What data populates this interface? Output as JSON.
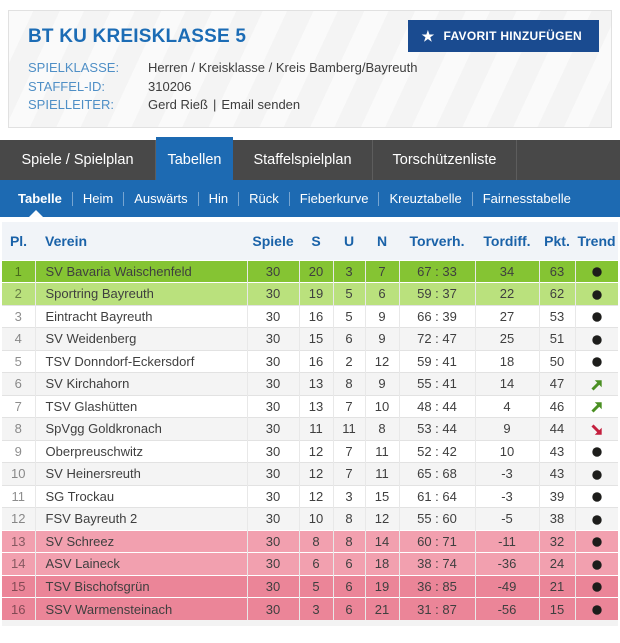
{
  "header": {
    "title": "BT KU KREISKLASSE 5",
    "favorite_button_label": "FAVORIT HINZUFÜGEN",
    "fields": [
      {
        "label": "SPIELKLASSE:",
        "value": "Herren / Kreisklasse / Kreis Bamberg/Bayreuth"
      },
      {
        "label": "STAFFEL-ID:",
        "value": "310206"
      }
    ],
    "spielleiter": {
      "label": "SPIELLEITER:",
      "name": "Gerd Rieß",
      "separator": "|",
      "email_link": "Email senden"
    }
  },
  "tabs": [
    {
      "label": "Spiele / Spielplan",
      "active": false
    },
    {
      "label": "Tabellen",
      "active": true
    },
    {
      "label": "Staffelspielplan",
      "active": false
    },
    {
      "label": "Torschützenliste",
      "active": false
    }
  ],
  "subnav": [
    {
      "label": "Tabelle",
      "active": true
    },
    {
      "label": "Heim",
      "active": false
    },
    {
      "label": "Auswärts",
      "active": false
    },
    {
      "label": "Hin",
      "active": false
    },
    {
      "label": "Rück",
      "active": false
    },
    {
      "label": "Fieberkurve",
      "active": false
    },
    {
      "label": "Kreuztabelle",
      "active": false
    },
    {
      "label": "Fairnesstabelle",
      "active": false
    }
  ],
  "table": {
    "columns": [
      "Pl.",
      "Verein",
      "Spiele",
      "S",
      "U",
      "N",
      "Torverh.",
      "Tordiff.",
      "Pkt.",
      "Trend"
    ],
    "rows": [
      {
        "pl": "1",
        "verein": "SV Bavaria Waischenfeld",
        "spiele": "30",
        "s": "20",
        "u": "3",
        "n": "7",
        "torverh": "67 : 33",
        "tordiff": "34",
        "pkt": "63",
        "trend": "steady",
        "zone": "champion"
      },
      {
        "pl": "2",
        "verein": "Sportring Bayreuth",
        "spiele": "30",
        "s": "19",
        "u": "5",
        "n": "6",
        "torverh": "59 : 37",
        "tordiff": "22",
        "pkt": "62",
        "trend": "steady",
        "zone": "promotion"
      },
      {
        "pl": "3",
        "verein": "Eintracht Bayreuth",
        "spiele": "30",
        "s": "16",
        "u": "5",
        "n": "9",
        "torverh": "66 : 39",
        "tordiff": "27",
        "pkt": "53",
        "trend": "steady",
        "zone": ""
      },
      {
        "pl": "4",
        "verein": "SV Weidenberg",
        "spiele": "30",
        "s": "15",
        "u": "6",
        "n": "9",
        "torverh": "72 : 47",
        "tordiff": "25",
        "pkt": "51",
        "trend": "steady",
        "zone": ""
      },
      {
        "pl": "5",
        "verein": "TSV Donndorf-Eckersdorf",
        "spiele": "30",
        "s": "16",
        "u": "2",
        "n": "12",
        "torverh": "59 : 41",
        "tordiff": "18",
        "pkt": "50",
        "trend": "steady",
        "zone": ""
      },
      {
        "pl": "6",
        "verein": "SV Kirchahorn",
        "spiele": "30",
        "s": "13",
        "u": "8",
        "n": "9",
        "torverh": "55 : 41",
        "tordiff": "14",
        "pkt": "47",
        "trend": "up",
        "zone": ""
      },
      {
        "pl": "7",
        "verein": "TSV Glashütten",
        "spiele": "30",
        "s": "13",
        "u": "7",
        "n": "10",
        "torverh": "48 : 44",
        "tordiff": "4",
        "pkt": "46",
        "trend": "up",
        "zone": ""
      },
      {
        "pl": "8",
        "verein": "SpVgg Goldkronach",
        "spiele": "30",
        "s": "11",
        "u": "11",
        "n": "8",
        "torverh": "53 : 44",
        "tordiff": "9",
        "pkt": "44",
        "trend": "down",
        "zone": ""
      },
      {
        "pl": "9",
        "verein": "Oberpreuschwitz",
        "spiele": "30",
        "s": "12",
        "u": "7",
        "n": "11",
        "torverh": "52 : 42",
        "tordiff": "10",
        "pkt": "43",
        "trend": "steady",
        "zone": ""
      },
      {
        "pl": "10",
        "verein": "SV Heinersreuth",
        "spiele": "30",
        "s": "12",
        "u": "7",
        "n": "11",
        "torverh": "65 : 68",
        "tordiff": "-3",
        "pkt": "43",
        "trend": "steady",
        "zone": ""
      },
      {
        "pl": "11",
        "verein": "SG Trockau",
        "spiele": "30",
        "s": "12",
        "u": "3",
        "n": "15",
        "torverh": "61 : 64",
        "tordiff": "-3",
        "pkt": "39",
        "trend": "steady",
        "zone": ""
      },
      {
        "pl": "12",
        "verein": "FSV Bayreuth 2",
        "spiele": "30",
        "s": "10",
        "u": "8",
        "n": "12",
        "torverh": "55 : 60",
        "tordiff": "-5",
        "pkt": "38",
        "trend": "steady",
        "zone": ""
      },
      {
        "pl": "13",
        "verein": "SV Schreez",
        "spiele": "30",
        "s": "8",
        "u": "8",
        "n": "14",
        "torverh": "60 : 71",
        "tordiff": "-11",
        "pkt": "32",
        "trend": "steady",
        "zone": "relegation-playoff"
      },
      {
        "pl": "14",
        "verein": "ASV Laineck",
        "spiele": "30",
        "s": "6",
        "u": "6",
        "n": "18",
        "torverh": "38 : 74",
        "tordiff": "-36",
        "pkt": "24",
        "trend": "steady",
        "zone": "relegation-playoff"
      },
      {
        "pl": "15",
        "verein": "TSV Bischofsgrün",
        "spiele": "30",
        "s": "5",
        "u": "6",
        "n": "19",
        "torverh": "36 : 85",
        "tordiff": "-49",
        "pkt": "21",
        "trend": "steady",
        "zone": "relegation"
      },
      {
        "pl": "16",
        "verein": "SSV Warmensteinach",
        "spiele": "30",
        "s": "3",
        "u": "6",
        "n": "21",
        "torverh": "31 : 87",
        "tordiff": "-56",
        "pkt": "15",
        "trend": "steady",
        "zone": "relegation"
      }
    ]
  },
  "colors": {
    "accent_blue": "#1d6ab2",
    "title_blue": "#1c6cb5",
    "button_navy": "#1a4b90",
    "champion_green": "#85c433",
    "promotion_green": "#bae17d",
    "relegation_pink_light": "#f2a0af",
    "relegation_pink": "#eb8598",
    "trend_up": "#4a8f22",
    "trend_down": "#c41f3e",
    "trend_steady": "#1d1d1b"
  },
  "icons": {
    "star": "★",
    "trend_steady": "dot",
    "trend_up": "arrow-up-right",
    "trend_down": "arrow-down-right"
  }
}
